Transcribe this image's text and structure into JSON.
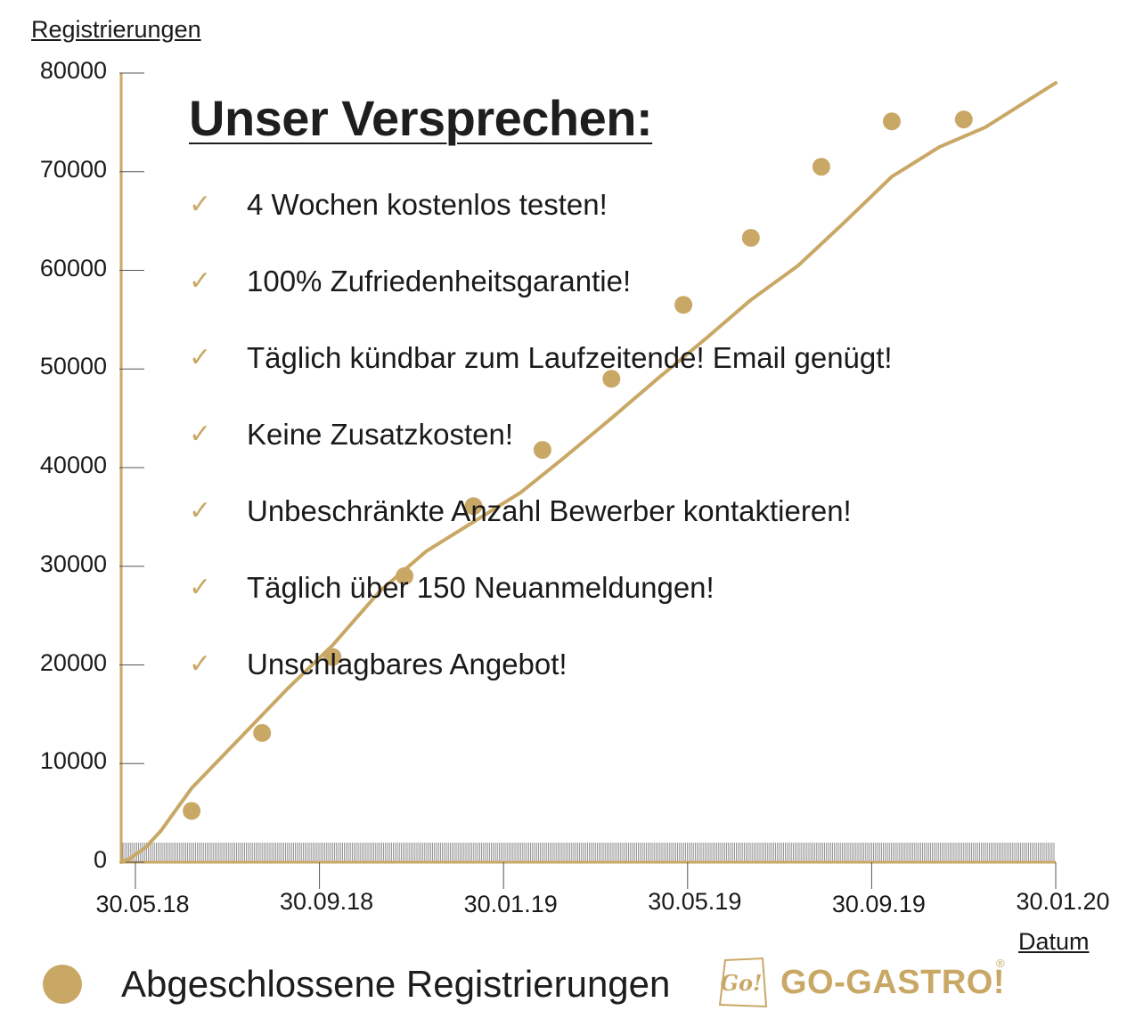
{
  "chart_data": {
    "type": "line",
    "ylabel": "Registrierungen",
    "xlabel": "Datum",
    "ylim": [
      0,
      80000
    ],
    "yticks": [
      0,
      10000,
      20000,
      30000,
      40000,
      50000,
      60000,
      70000,
      80000
    ],
    "ytick_labels": [
      "0",
      "10000",
      "20000",
      "30000",
      "40000",
      "50000",
      "60000",
      "70000",
      "80000"
    ],
    "xlim": [
      "2018-05-30",
      "2020-01-30"
    ],
    "xtick_labels": [
      "30.05.18",
      "30.09.18",
      "30.01.19",
      "30.05.19",
      "30.09.19",
      "30.01.20"
    ],
    "series": [
      {
        "name": "Abgeschlossene Registrierungen",
        "color": "#c9a866",
        "x": [
          "2018-05-30",
          "2018-06-05",
          "2018-06-15",
          "2018-06-25",
          "2018-07-15",
          "2018-08-15",
          "2018-09-15",
          "2018-10-15",
          "2018-11-15",
          "2018-12-15",
          "2019-01-15",
          "2019-02-15",
          "2019-03-15",
          "2019-04-15",
          "2019-05-15",
          "2019-06-15",
          "2019-07-15",
          "2019-08-15",
          "2019-09-15",
          "2019-10-15",
          "2019-11-15",
          "2019-12-15",
          "2020-01-30"
        ],
        "values": [
          0,
          400,
          1500,
          3200,
          7500,
          12500,
          17500,
          22000,
          27500,
          31500,
          34500,
          37500,
          41000,
          45000,
          49000,
          53000,
          57000,
          60500,
          65000,
          69500,
          72500,
          74500,
          79000
        ]
      }
    ],
    "markers": {
      "x": [
        "2018-07-15",
        "2018-08-30",
        "2018-10-15",
        "2018-12-01",
        "2019-01-15",
        "2019-03-01",
        "2019-04-15",
        "2019-06-01",
        "2019-07-15",
        "2019-08-30",
        "2019-10-15",
        "2019-12-01"
      ],
      "values": [
        5200,
        13100,
        20800,
        29000,
        36100,
        41800,
        49000,
        56500,
        63300,
        70500,
        75100,
        75300
      ]
    },
    "grid": false,
    "legend": "bottom-left"
  },
  "promise": {
    "title": "Unser Versprechen:",
    "items": [
      "4 Wochen kostenlos testen!",
      "100% Zufriedenheitsgarantie!",
      "Täglich kündbar zum Laufzeitende! Email genügt!",
      "Keine Zusatzkosten!",
      "Unbeschränkte Anzahl Bewerber kontaktieren!",
      "Täglich über 150 Neuanmeldungen!",
      "Unschlagbares Angebot!"
    ],
    "check_symbol": "✓"
  },
  "legend": {
    "label": "Abgeschlossene Registrierungen"
  },
  "logo": {
    "mark": "Go!",
    "text": "GO-GASTRO!",
    "reg": "®"
  },
  "colors": {
    "accent": "#c9a866",
    "text": "#1a1a1a",
    "axis": "#c9a866",
    "rug": "#8c8c8c"
  }
}
